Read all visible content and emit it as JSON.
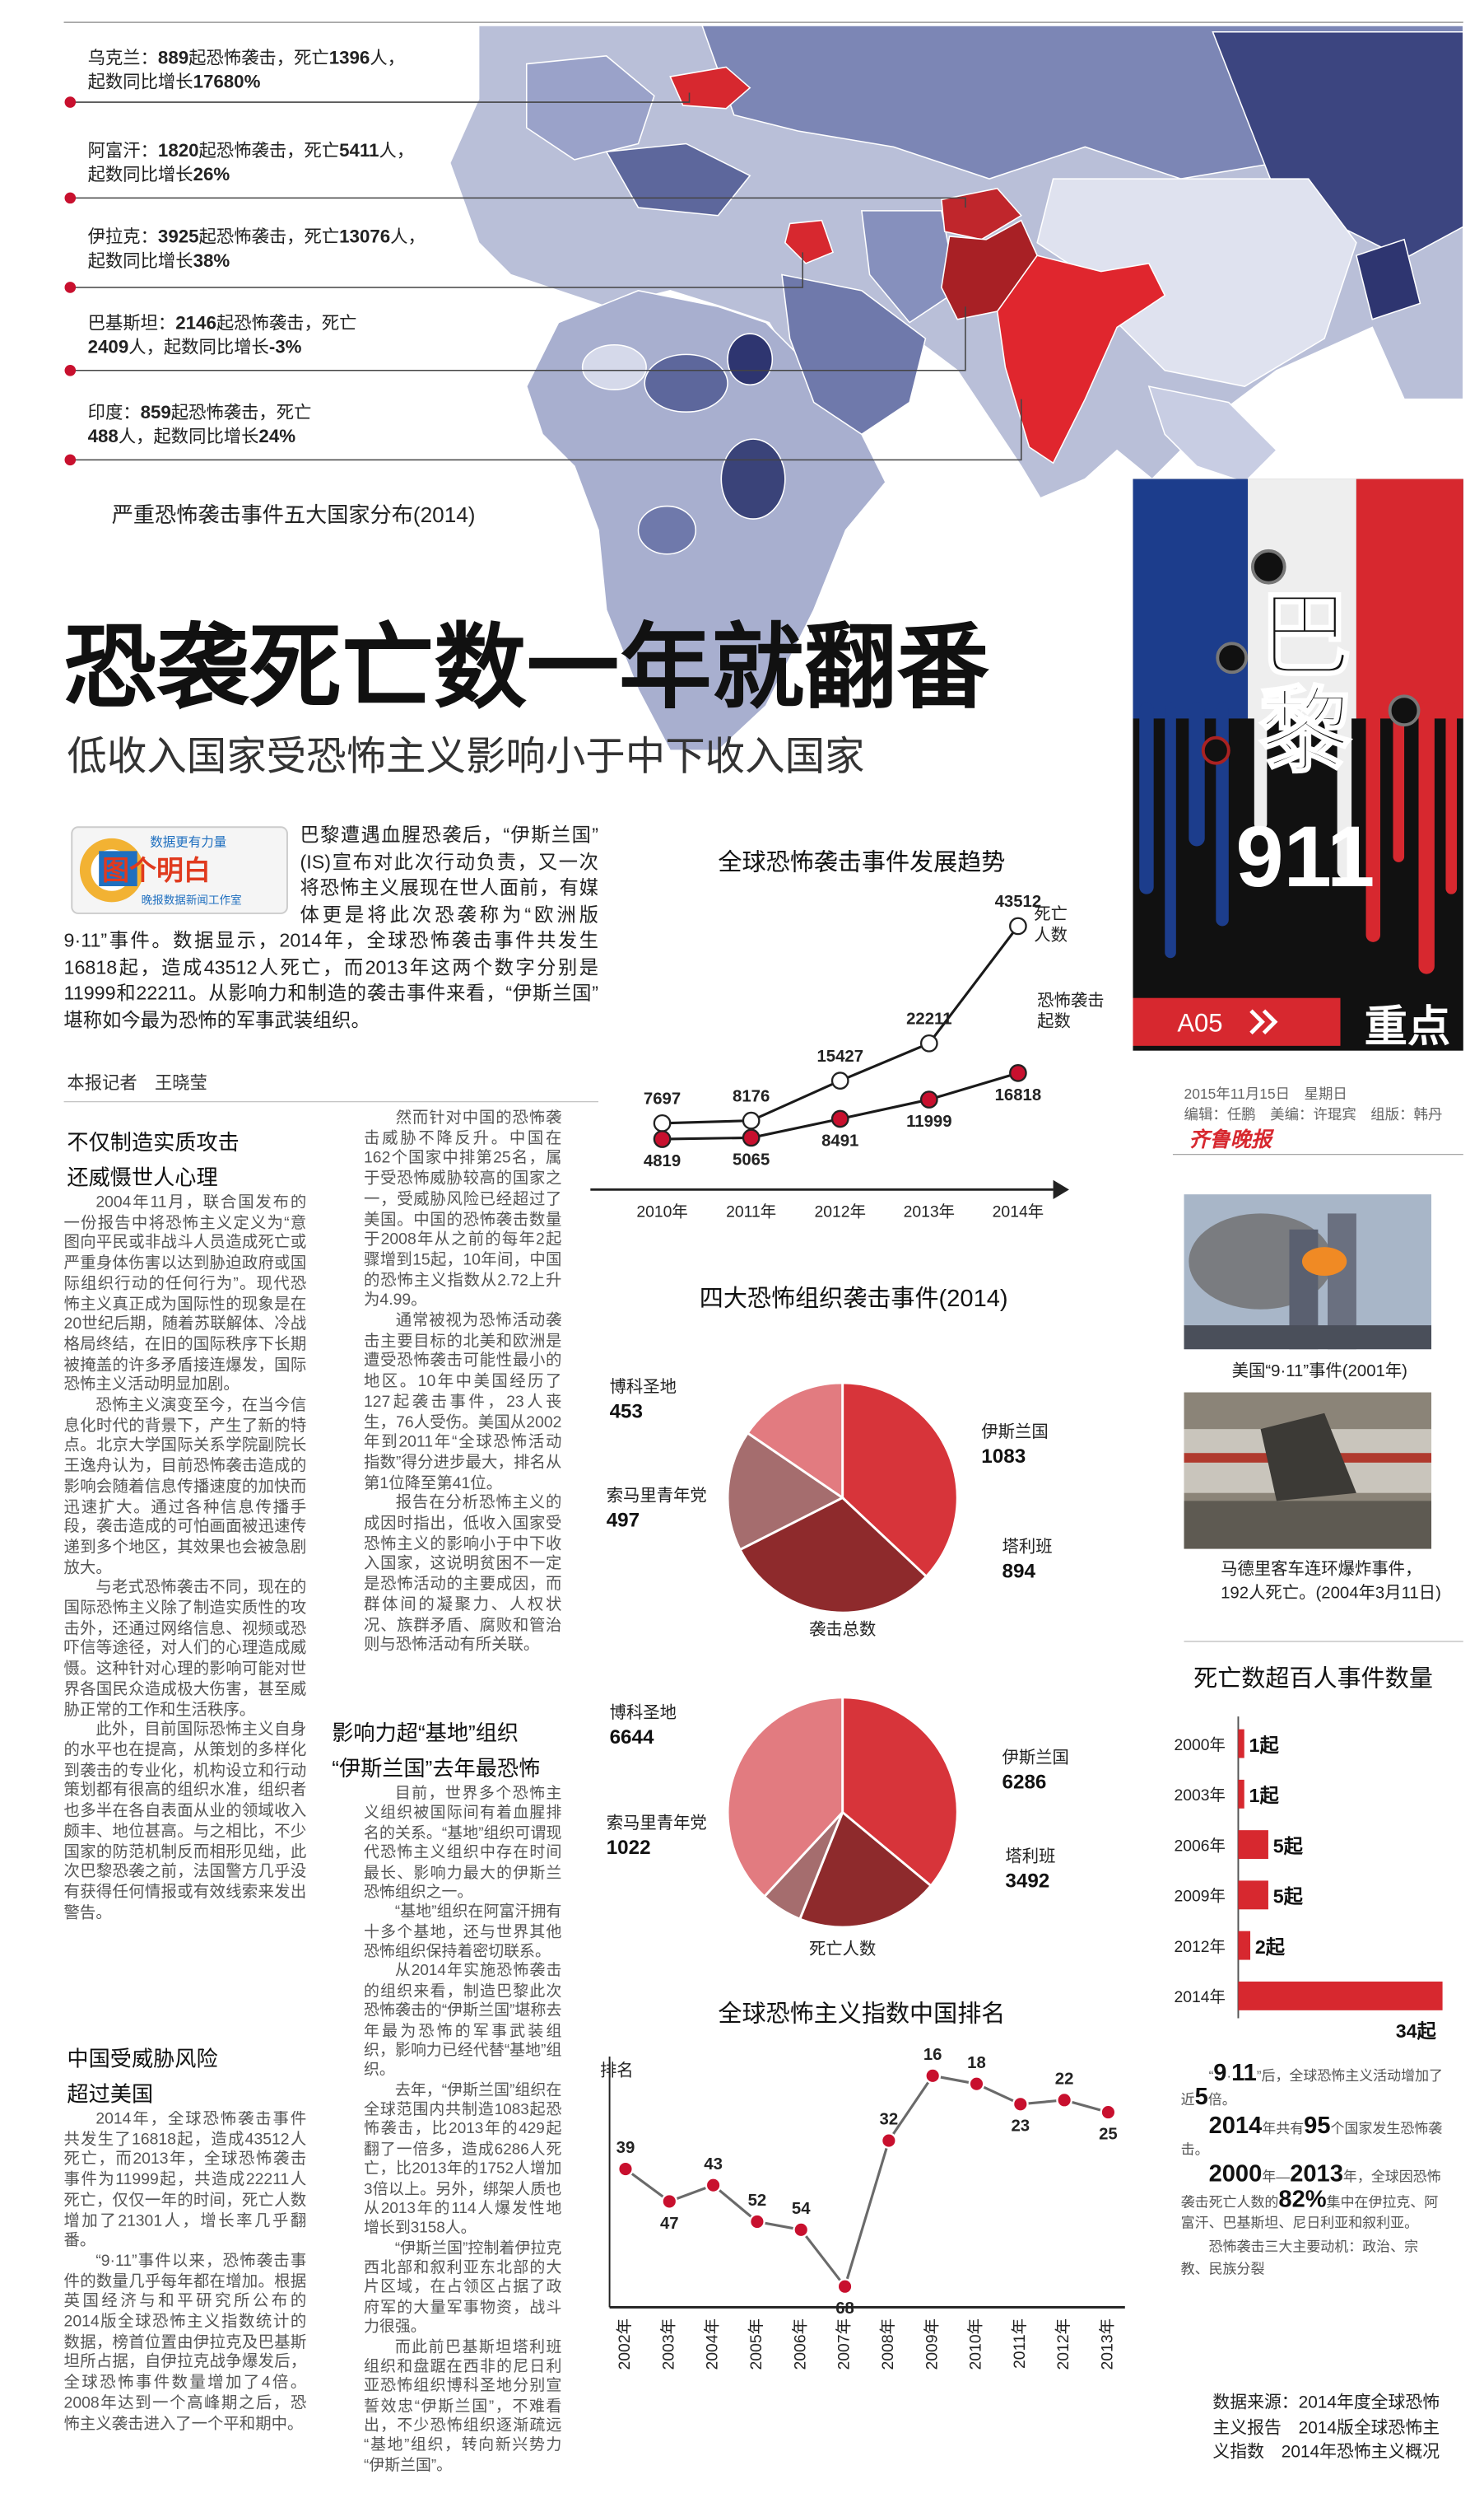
{
  "map": {
    "caption": "严重恐怖袭击事件五大国家分布(2014)",
    "callouts": [
      {
        "lines": [
          "乌克兰：889起恐怖袭击，死亡1396人，",
          "起数同比增长17680%"
        ]
      },
      {
        "lines": [
          "阿富汗：1820起恐怖袭击，死亡5411人，",
          "起数同比增长26%"
        ]
      },
      {
        "lines": [
          "伊拉克：3925起恐怖袭击，死亡13076人，",
          "起数同比增长38%"
        ]
      },
      {
        "lines": [
          "巴基斯坦：2146起恐怖袭击，死亡",
          "2409人，起数同比增长-3%"
        ]
      },
      {
        "lines": [
          "印度：859起恐怖袭击，死亡",
          "488人，起数同比增长24%"
        ]
      }
    ]
  },
  "header": {
    "title": "恐袭死亡数一年就翻番",
    "subtitle": "低收入国家受恐怖主义影响小于中下收入国家"
  },
  "badge": {
    "top": "数据更有力量",
    "main": "图个明白",
    "bottom": "晚报数据新闻工作室"
  },
  "intro": "巴黎遭遇血腥恐袭后，“伊斯兰国”(IS)宣布对此次行动负责，又一次将恐怖主义展现在世人面前，有媒体更是将此次恐袭称为“欧洲版9·11”事件。数据显示，2014年，全球恐怖袭击事件共发生16818起，造成43512人死亡，而2013年这两个数字分别是11999和22211。从影响力和制造的袭击事件来看，“伊斯兰国”堪称如今最为恐怖的军事武装组织。",
  "byline": "本报记者　王晓莹",
  "article": {
    "sections": [
      {
        "heading": [
          "不仅制造实质攻击",
          "还威慑世人心理"
        ],
        "paragraphs": [
          "2004年11月，联合国发布的一份报告中将恐怖主义定义为“意图向平民或非战斗人员造成死亡或严重身体伤害以达到胁迫政府或国际组织行动的任何行为”。现代恐怖主义真正成为国际性的现象是在20世纪后期，随着苏联解体、冷战格局终结，在旧的国际秩序下长期被掩盖的许多矛盾接连爆发，国际恐怖主义活动明显加剧。",
          "恐怖主义演变至今，在当今信息化时代的背景下，产生了新的特点。北京大学国际关系学院副院长王逸舟认为，目前恐怖袭击造成的影响会随着信息传播速度的加快而迅速扩大。通过各种信息传播手段，袭击造成的可怕画面被迅速传递到多个地区，其效果也会被急剧放大。",
          "与老式恐怖袭击不同，现在的国际恐怖主义除了制造实质性的攻击外，还通过网络信息、视频或恐吓信等途径，对人们的心理造成威慑。这种针对心理的影响可能对世界各国民众造成极大伤害，甚至威胁正常的工作和生活秩序。",
          "此外，目前国际恐怖主义自身的水平也在提高，从策划的多样化到袭击的专业化，机构设立和行动策划都有很高的组织水准，组织者也多半在各自表面从业的领域收入颇丰、地位甚高。与之相比，不少国家的防范机制反而相形见绌，此次巴黎恐袭之前，法国警方几乎没有获得任何情报或有效线索来发出警告。"
        ]
      },
      {
        "heading": [
          "中国受威胁风险",
          "超过美国"
        ],
        "paragraphs": [
          "2014年，全球恐怖袭击事件共发生了16818起，造成43512人死亡，而2013年，全球恐怖袭击事件为11999起，共造成22211人死亡，仅仅一年的时间，死亡人数增加了21301人，增长率几乎翻番。",
          "“9·11”事件以来，恐怖袭击事件的数量几乎每年都在增加。根据英国经济与和平研究所公布的2014版全球恐怖主义指数统计的数据，榜首位置由伊拉克及巴基斯坦所占据，自伊拉克战争爆发后，全球恐怖事件数量增加了4倍。2008年达到一个高峰期之后，恐怖主义袭击进入了一个平和期中。"
        ],
        "continued": [
          "然而针对中国的恐怖袭击威胁不降反升。中国在162个国家中排第25名，属于受恐怖威胁较高的国家之一，受威胁风险已经超过了美国。中国的恐怖袭击数量于2008年从之前的每年2起骤增到15起，10年间，中国的恐怖主义指数从2.72上升为4.99。",
          "通常被视为恐怖活动袭击主要目标的北美和欧洲是遭受恐怖袭击可能性最小的地区。10年中美国经历了127起袭击事件，23人丧生，76人受伤。美国从2002年到2011年“全球恐怖活动指数”得分进步最大，排名从第1位降至第41位。",
          "报告在分析恐怖主义的成因时指出，低收入国家受恐怖主义的影响小于中下收入国家，这说明贫困不一定是恐怖活动的主要成因，而群体间的凝聚力、人权状况、族群矛盾、腐败和管治则与恐怖活动有所关联。"
        ]
      },
      {
        "heading": [
          "影响力超“基地”组织",
          "“伊斯兰国”去年最恐怖"
        ],
        "paragraphs": [
          "目前，世界多个恐怖主义组织被国际间有着血腥排名的关系。“基地”组织可谓现代恐怖主义组织中存在时间最长、影响力最大的伊斯兰恐怖组织之一。",
          "“基地”组织在阿富汗拥有十多个基地，还与世界其他恐怖组织保持着密切联系。",
          "从2014年实施恐怖袭击的组织来看，制造巴黎此次恐怖袭击的“伊斯兰国”堪称去年最为恐怖的军事武装组织，影响力已经代替“基地”组织。",
          "去年，“伊斯兰国”组织在全球范围内共制造1083起恐怖袭击，比2013年的429起翻了一倍多，造成6286人死亡，比2013年的1752人增加3倍以上。另外，绑架人质也从2013年的114人爆发性地增长到3158人。",
          "“伊斯兰国”控制着伊拉克西北部和叙利亚东北部的大片区域，在占领区占据了政府军的大量军事物资，战斗力很强。",
          "而此前巴基斯坦塔利班组织和盘踞在西非的尼日利亚恐怖组织博科圣地分别宣誓效忠“伊斯兰国”，不难看出，不少恐怖组织逐渐疏远“基地”组织，转向新兴势力“伊斯兰国”。"
        ]
      }
    ]
  },
  "sidebar": {
    "banner_title": "巴黎911",
    "page_no": "A05",
    "section": "重点",
    "date": "2015年11月15日　星期日",
    "editors": "编辑：任鹏　美编：许琨宾　组版：韩丹",
    "paper": "齐鲁晚报",
    "photos": [
      {
        "caption": "美国“9·11”事件(2001年)"
      },
      {
        "caption": "马德里客车连环爆炸事件，192人死亡。(2004年3月11日)"
      }
    ],
    "notes": [
      "“9·11”后，全球恐怖主义活动增加了近5倍。",
      "2014年共有95个国家发生恐怖袭击。",
      "2000年—2013年，全球因恐怖袭击死亡人数的82%集中在伊拉克、阿富汗、巴基斯坦、尼日利亚和叙利亚。",
      "恐怖袭击三大主要动机：政治、宗教、民族分裂"
    ],
    "source": "数据来源：2014年度全球恐怖主义报告　2014版全球恐怖主义指数　2014年恐怖主义概况"
  },
  "chart_data": [
    {
      "type": "line",
      "title": "全球恐怖袭击事件发展趋势",
      "categories": [
        "2010年",
        "2011年",
        "2012年",
        "2013年",
        "2014年"
      ],
      "line_color": "#1a1a1a",
      "series": [
        {
          "name": "死亡人数",
          "color": "#ffffff",
          "values": [
            7697,
            8176,
            15427,
            22211,
            43512
          ]
        },
        {
          "name": "恐怖袭击起数",
          "color": "#c8102e",
          "values": [
            4819,
            5065,
            8491,
            11999,
            16818
          ]
        }
      ]
    },
    {
      "type": "pie",
      "title": "四大恐怖组织袭击事件(2014)",
      "label": "袭击总数",
      "categories": [
        "伊斯兰国",
        "塔利班",
        "索马里青年党",
        "博科圣地"
      ],
      "values": [
        1083,
        894,
        497,
        453
      ],
      "colors": [
        "#d7343a",
        "#8e2a2c",
        "#a56d6e",
        "#e27b80"
      ]
    },
    {
      "type": "pie",
      "label": "死亡人数",
      "categories": [
        "伊斯兰国",
        "塔利班",
        "索马里青年党",
        "博科圣地"
      ],
      "values": [
        6286,
        3492,
        1022,
        6644
      ],
      "colors": [
        "#d7343a",
        "#8e2a2c",
        "#a56d6e",
        "#e27b80"
      ]
    },
    {
      "type": "line",
      "title": "全球恐怖主义指数中国排名",
      "y_label": "排名",
      "y_inverted": true,
      "categories": [
        "2002年",
        "2003年",
        "2004年",
        "2005年",
        "2006年",
        "2007年",
        "2008年",
        "2009年",
        "2010年",
        "2011年",
        "2012年",
        "2013年"
      ],
      "values": [
        39,
        47,
        43,
        52,
        54,
        68,
        32,
        16,
        18,
        23,
        22,
        25
      ],
      "color": "#c8102e",
      "line_color": "#6a6a6a"
    },
    {
      "type": "bar",
      "horizontal": true,
      "title": "死亡数超百人事件数量",
      "categories": [
        "2000年",
        "2003年",
        "2006年",
        "2009年",
        "2012年",
        "2014年"
      ],
      "values": [
        1,
        1,
        5,
        5,
        2,
        34
      ],
      "value_labels": [
        "1起",
        "1起",
        "5起",
        "5起",
        "2起",
        "34起"
      ],
      "color": "#d7282f"
    }
  ]
}
